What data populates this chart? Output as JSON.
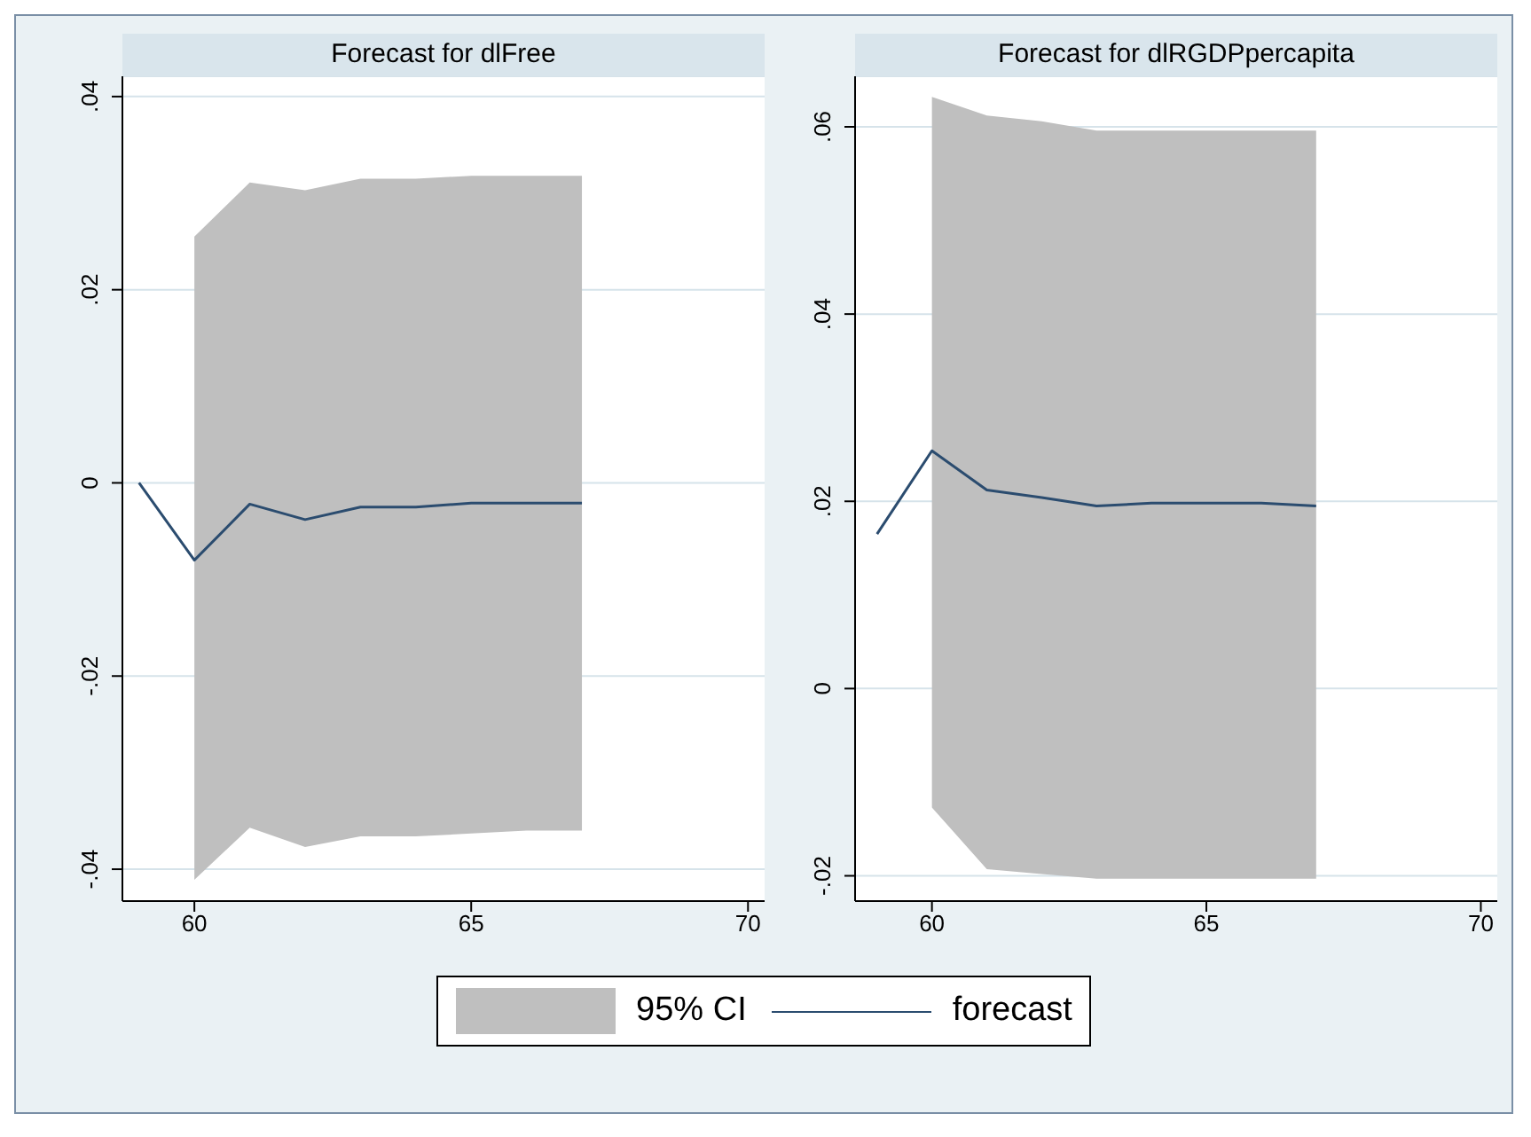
{
  "chart_data": [
    {
      "type": "line",
      "title": "Forecast for dlFree",
      "x": [
        59,
        60,
        61,
        62,
        63,
        64,
        65,
        66,
        67
      ],
      "xlim": [
        58.7,
        70.3
      ],
      "xticks": [
        60,
        65,
        70
      ],
      "ylim": [
        -0.0433,
        0.0421
      ],
      "yticks": [
        {
          "value": -0.04,
          "label": "-.04"
        },
        {
          "value": -0.02,
          "label": "-.02"
        },
        0,
        {
          "value": 0.02,
          "label": ".02"
        },
        {
          "value": 0.04,
          "label": ".04"
        }
      ],
      "grid": "y",
      "legend": "bottom",
      "annotations": [
        "95% CI"
      ],
      "series": [
        {
          "name": "forecast",
          "color": "#2b4c6f",
          "values": [
            0,
            -0.008,
            -0.0022,
            -0.0038,
            -0.0025,
            -0.0025,
            -0.0021,
            -0.0021,
            -0.0021
          ],
          "lower": [
            null,
            -0.0411,
            -0.0357,
            -0.0377,
            -0.0366,
            -0.0366,
            -0.0363,
            -0.036,
            -0.036
          ],
          "upper": [
            null,
            0.0255,
            0.0311,
            0.0303,
            0.0315,
            0.0315,
            0.0318,
            0.0318,
            0.0318
          ]
        }
      ]
    },
    {
      "type": "line",
      "title": "Forecast for dlRGDPpercapita",
      "x": [
        59,
        60,
        61,
        62,
        63,
        64,
        65,
        66,
        67
      ],
      "xlim": [
        58.6,
        70.3
      ],
      "xticks": [
        60,
        65,
        70
      ],
      "ylim": [
        -0.0227,
        0.0654
      ],
      "yticks": [
        {
          "value": -0.02,
          "label": "-.02"
        },
        0,
        {
          "value": 0.02,
          "label": ".02"
        },
        {
          "value": 0.04,
          "label": ".04"
        },
        {
          "value": 0.06,
          "label": ".06"
        }
      ],
      "grid": "y",
      "series": [
        {
          "color": "#2b4c6f",
          "values": [
            0.0165,
            0.0254,
            0.0212,
            0.0204,
            0.0195,
            0.0198,
            0.0198,
            0.0198,
            0.0195
          ],
          "lower": [
            null,
            -0.0127,
            -0.0193,
            -0.0198,
            -0.0203,
            -0.0203,
            -0.0203,
            -0.0203,
            -0.0203
          ],
          "upper": [
            null,
            0.0632,
            0.0612,
            0.0606,
            0.0596,
            0.0596,
            0.0596,
            0.0596,
            0.0596
          ]
        }
      ]
    }
  ]
}
